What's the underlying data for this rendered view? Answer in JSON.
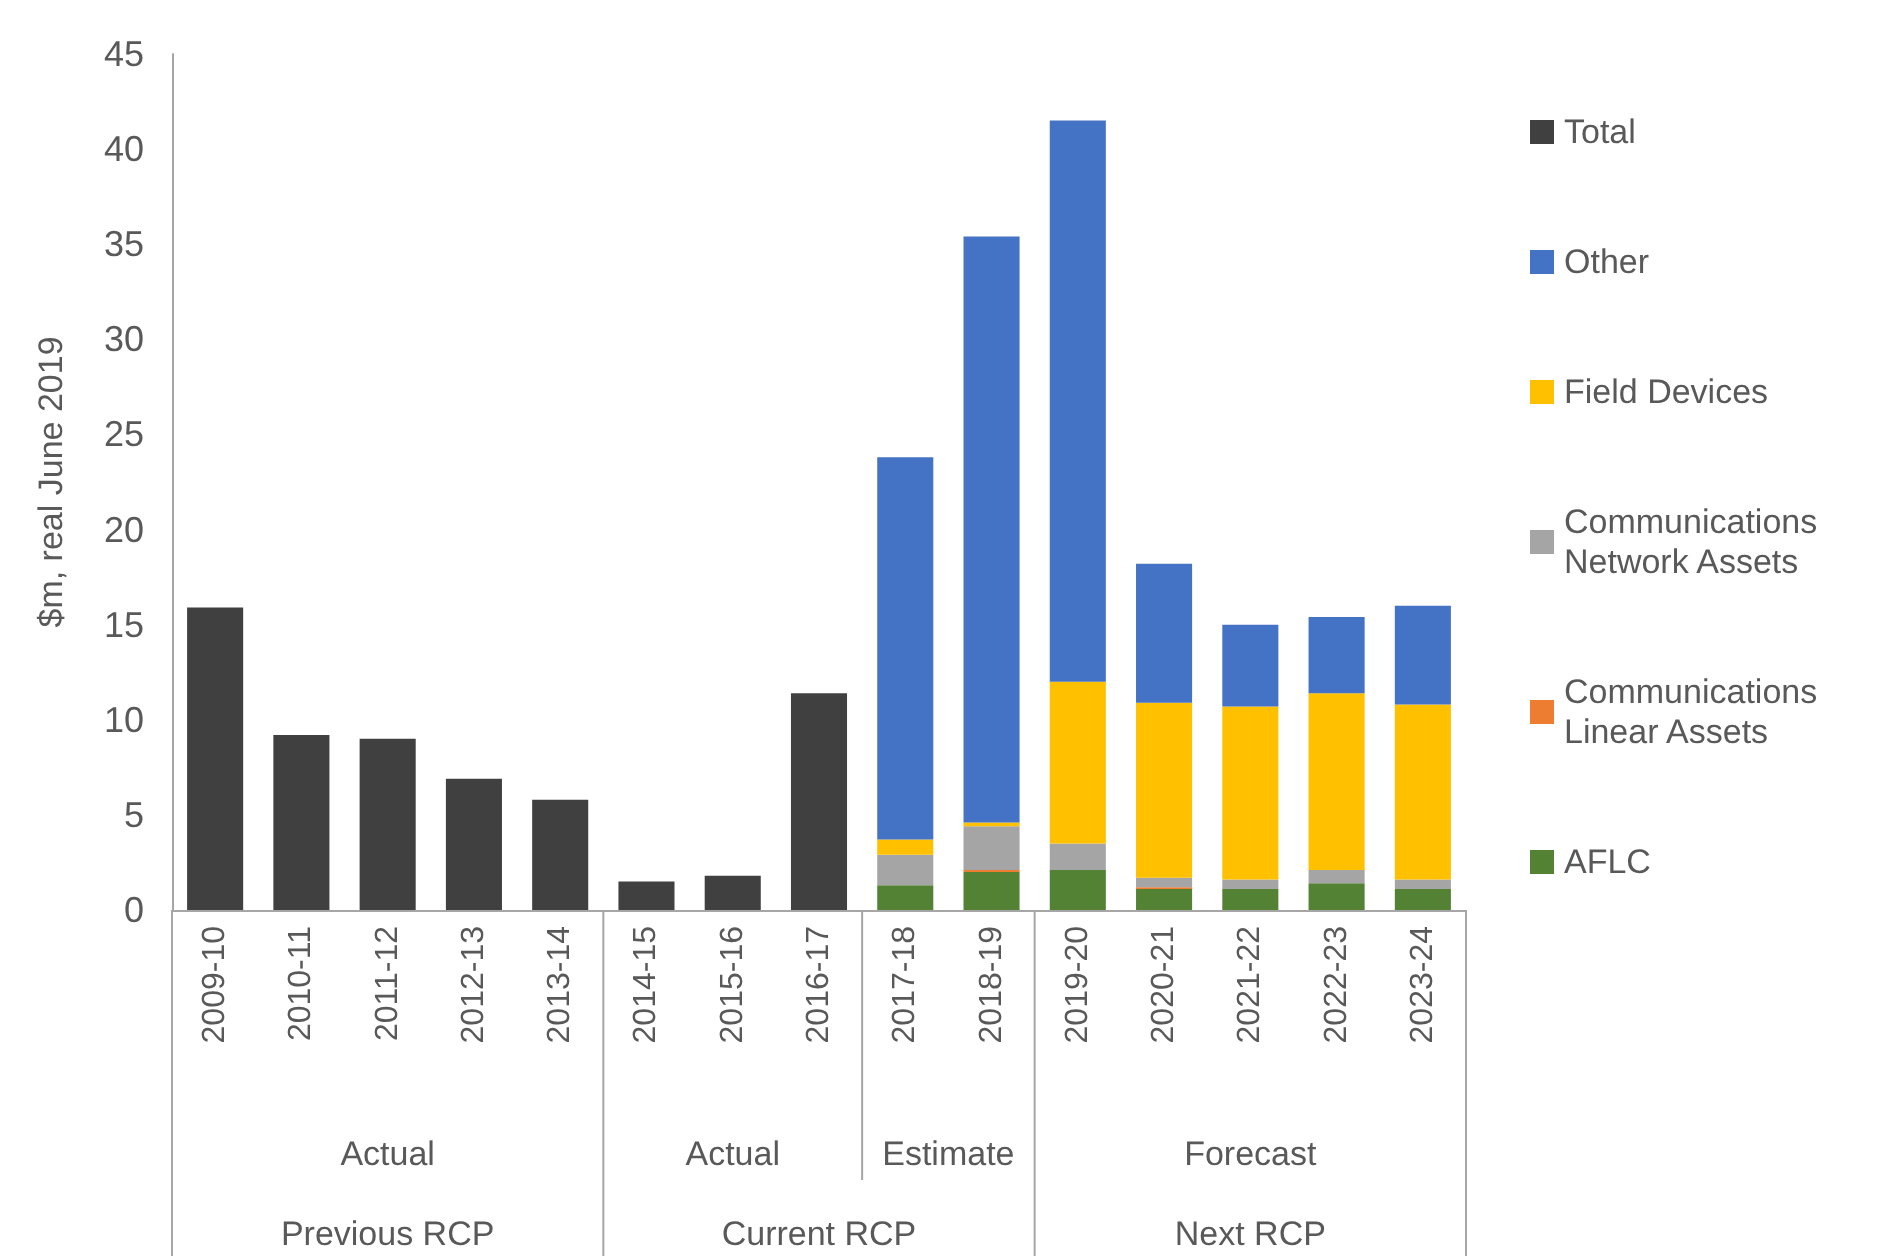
{
  "chart_data": {
    "type": "bar",
    "stacked": true,
    "ylabel": "$m, real June 2019",
    "categories": [
      "2009-10",
      "2010-11",
      "2011-12",
      "2012-13",
      "2013-14",
      "2014-15",
      "2015-16",
      "2016-17",
      "2017-18",
      "2018-19",
      "2019-20",
      "2020-21",
      "2021-22",
      "2022-23",
      "2023-24"
    ],
    "series": [
      {
        "name": "AFLC",
        "color": "#548235",
        "values": [
          null,
          null,
          null,
          null,
          null,
          null,
          null,
          null,
          1.3,
          2.0,
          2.1,
          1.1,
          1.1,
          1.4,
          1.1
        ]
      },
      {
        "name": "Communications Linear Assets",
        "color": "#ed7d31",
        "values": [
          null,
          null,
          null,
          null,
          null,
          null,
          null,
          null,
          null,
          0.1,
          null,
          0.1,
          null,
          null,
          null
        ]
      },
      {
        "name": "Communications Network Assets",
        "color": "#a5a5a5",
        "values": [
          null,
          null,
          null,
          null,
          null,
          null,
          null,
          null,
          1.6,
          2.3,
          1.4,
          0.5,
          0.5,
          0.7,
          0.5
        ]
      },
      {
        "name": "Field Devices",
        "color": "#ffc000",
        "values": [
          null,
          null,
          null,
          null,
          null,
          null,
          null,
          null,
          0.8,
          0.2,
          8.5,
          9.2,
          9.1,
          9.3,
          9.2
        ]
      },
      {
        "name": "Other",
        "color": "#4472c4",
        "values": [
          null,
          null,
          null,
          null,
          null,
          null,
          null,
          null,
          20.1,
          30.8,
          29.5,
          7.3,
          4.3,
          4.0,
          5.2
        ]
      },
      {
        "name": "Total",
        "color": "#404040",
        "values": [
          15.9,
          9.2,
          9.0,
          6.9,
          5.8,
          1.5,
          1.8,
          11.4,
          null,
          null,
          null,
          null,
          null,
          null,
          null
        ]
      }
    ],
    "ylim": [
      0,
      45
    ],
    "yticks": [
      0,
      5,
      10,
      15,
      20,
      25,
      30,
      35,
      40,
      45
    ],
    "grid": false,
    "legend": "right",
    "annotations": [
      "Actual",
      "Actual",
      "Estimate",
      "Forecast",
      "Previous RCP",
      "Current RCP",
      "Next RCP"
    ]
  }
}
